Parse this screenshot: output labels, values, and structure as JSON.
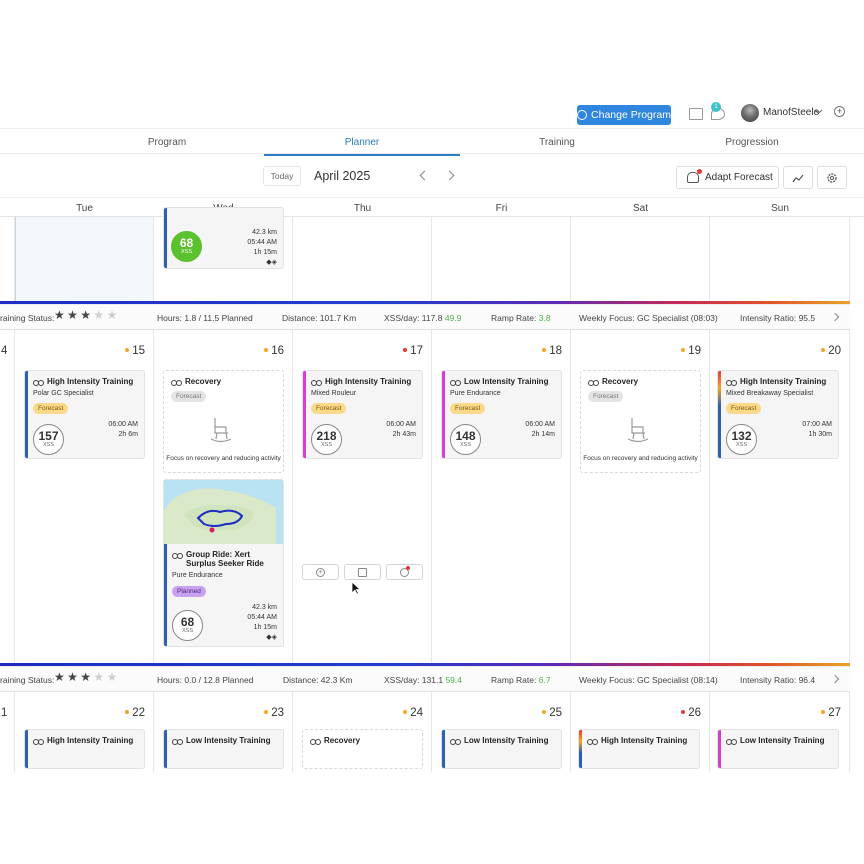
{
  "header": {
    "change_program": "Change Program",
    "notif_count": "1",
    "username": "ManofSteele"
  },
  "tabs": [
    "Program",
    "Planner",
    "Training",
    "Progression"
  ],
  "toolbar": {
    "today": "Today",
    "month": "April 2025",
    "adapt_forecast": "Adapt Forecast"
  },
  "days": [
    "Tue",
    "Wed",
    "Thu",
    "Fri",
    "Sat",
    "Sun"
  ],
  "week1": {
    "wed_card": {
      "xss": "68",
      "xss_label": "XSS",
      "distance": "42.3 km",
      "time": "05:44 AM",
      "duration": "1h 15m"
    },
    "status": {
      "label": "raining Status:",
      "hours": "Hours: 1.8 / 11.5 Planned",
      "distance": "Distance: 101.7 Km",
      "xss_day": "XSS/day: 117.8",
      "xss_day_delta": "49.9",
      "ramp": "Ramp Rate:",
      "ramp_val": "3.8",
      "focus": "Weekly Focus: GC Specialist (08:03)",
      "intensity": "Intensity Ratio: 95.5"
    }
  },
  "week2": {
    "day_numbers": [
      "4",
      "15",
      "16",
      "17",
      "18",
      "19",
      "20"
    ],
    "tue": {
      "title": "High Intensity Training",
      "sub": "Polar GC Specialist",
      "tag": "Forecast",
      "xss": "157",
      "time": "06:00 AM",
      "duration": "2h 6m"
    },
    "wed_recovery": {
      "title": "Recovery",
      "tag": "Forecast",
      "focus": "Focus on recovery and reducing activity"
    },
    "wed_group": {
      "title": "Group Ride: Xert Surplus Seeker Ride",
      "sub": "Pure Endurance",
      "tag": "Planned",
      "xss": "68",
      "distance": "42.3 km",
      "time": "05:44 AM",
      "duration": "1h 15m"
    },
    "thu": {
      "title": "High Intensity Training",
      "sub": "Mixed Rouleur",
      "tag": "Forecast",
      "xss": "218",
      "time": "06:00 AM",
      "duration": "2h 43m"
    },
    "fri": {
      "title": "Low Intensity Training",
      "sub": "Pure Endurance",
      "tag": "Forecast",
      "xss": "148",
      "time": "06:00 AM",
      "duration": "2h 14m"
    },
    "sat_recovery": {
      "title": "Recovery",
      "tag": "Forecast",
      "focus": "Focus on recovery and reducing activity"
    },
    "sun": {
      "title": "High Intensity Training",
      "sub": "Mixed Breakaway Specialist",
      "tag": "Forecast",
      "xss": "132",
      "time": "07:00 AM",
      "duration": "1h 30m"
    },
    "status": {
      "label": "raining Status:",
      "hours": "Hours: 0.0 / 12.8 Planned",
      "distance": "Distance: 42.3 Km",
      "xss_day": "XSS/day: 131.1",
      "xss_day_delta": "59.4",
      "ramp": "Ramp Rate:",
      "ramp_val": "6.7",
      "focus": "Weekly Focus: GC Specialist (08:14)",
      "intensity": "Intensity Ratio: 96.4"
    }
  },
  "week3": {
    "day_numbers": [
      "1",
      "22",
      "23",
      "24",
      "25",
      "26",
      "27"
    ],
    "titles": [
      "High Intensity Training",
      "Low Intensity Training",
      "Recovery",
      "Low Intensity Training",
      "High Intensity Training",
      "Low Intensity Training"
    ]
  },
  "xss_label": "XSS",
  "colors": {
    "accent": "#2e86de",
    "forecast": "#fbd98a",
    "planned": "#c8a2f0",
    "recovery_green": "#5cc12e"
  }
}
